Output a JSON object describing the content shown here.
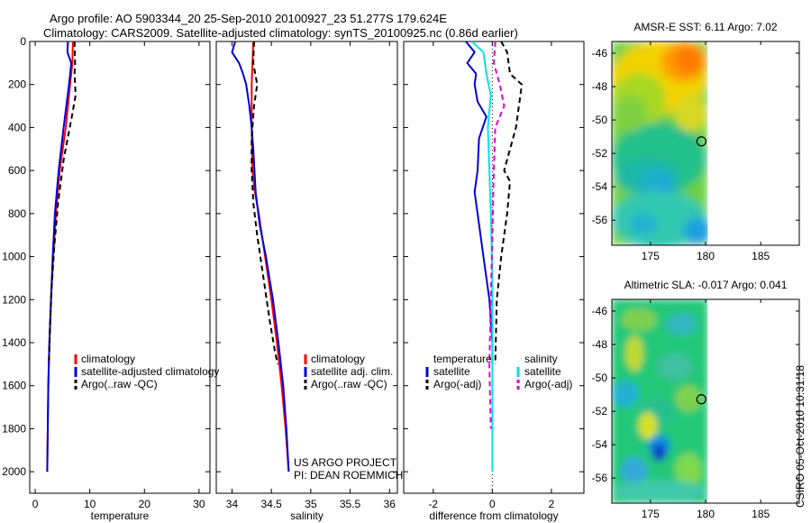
{
  "header": {
    "line1": "Argo profile: AO 5903344_20 25-Sep-2010 20100927_23 51.277S 179.624E",
    "line2": "Climatology: CARS2009. Satellite-adjusted climatology: synTS_20100925.nc (0.86d earlier)"
  },
  "credit": {
    "project": "US ARGO PROJECT",
    "pi": "PI: DEAN ROEMMICH",
    "stamp": "CSIRO 05-Oct-2010 10:31:18"
  },
  "colors": {
    "climatology": "#ff0000",
    "satellite": "#0000dd",
    "argo": "#000000",
    "sal_satellite": "#00e5e5",
    "sal_argo": "#e000e0"
  },
  "chart_data": [
    {
      "type": "line",
      "xlabel": "temperature",
      "ylabel": "",
      "xlim": [
        -1,
        32
      ],
      "ylim": [
        2100,
        0
      ],
      "xticks": [
        0,
        10,
        20,
        30
      ],
      "yticks": [
        0,
        200,
        400,
        600,
        800,
        1000,
        1200,
        1400,
        1600,
        1800,
        2000
      ],
      "legend": [
        "climatology",
        "satellite-adjusted climatology",
        "Argo(..raw -QC)"
      ],
      "series": [
        {
          "name": "climatology",
          "color": "#ff0000",
          "dash": "",
          "x": [
            6.9,
            6.8,
            6.4,
            5.6,
            4.5,
            3.8,
            3.3,
            2.9,
            2.6,
            2.4,
            2.3,
            2.2
          ],
          "y": [
            0,
            100,
            200,
            400,
            600,
            800,
            1000,
            1200,
            1400,
            1600,
            1800,
            2000
          ]
        },
        {
          "name": "satellite-adjusted climatology",
          "color": "#0000dd",
          "dash": "",
          "x": [
            6.0,
            5.9,
            6.6,
            6.2,
            5.2,
            4.3,
            3.6,
            3.2,
            2.9,
            2.6,
            2.4,
            2.3,
            2.2
          ],
          "y": [
            0,
            50,
            100,
            200,
            400,
            600,
            800,
            1000,
            1200,
            1400,
            1600,
            1800,
            2000
          ]
        },
        {
          "name": "Argo(..raw -QC)",
          "color": "#000000",
          "dash": "6,4",
          "x": [
            7.2,
            7.3,
            7.2,
            7.4,
            6.7,
            5.2,
            4.2,
            3.5,
            3.0,
            2.7,
            2.5
          ],
          "y": [
            0,
            100,
            150,
            250,
            350,
            550,
            750,
            950,
            1150,
            1350,
            1500
          ]
        }
      ]
    },
    {
      "type": "line",
      "xlabel": "salinity",
      "ylabel": "",
      "xlim": [
        33.8,
        36.1
      ],
      "ylim": [
        2100,
        0
      ],
      "xticks": [
        34,
        34.5,
        35,
        35.5,
        36
      ],
      "legend": [
        "climatology",
        "satellite adj. clim.",
        "Argo(..raw -QC)"
      ],
      "series": [
        {
          "name": "climatology",
          "color": "#ff0000",
          "dash": "",
          "x": [
            34.27,
            34.26,
            34.25,
            34.25,
            34.26,
            34.29,
            34.34,
            34.42,
            34.5,
            34.57,
            34.63,
            34.68,
            34.72
          ],
          "y": [
            0,
            100,
            200,
            400,
            600,
            700,
            800,
            1000,
            1200,
            1400,
            1600,
            1800,
            2000
          ]
        },
        {
          "name": "satellite adj. clim.",
          "color": "#0000dd",
          "dash": "",
          "x": [
            34.04,
            34.0,
            34.09,
            34.14,
            34.18,
            34.22,
            34.25,
            34.27,
            34.3,
            34.35,
            34.43,
            34.52,
            34.59,
            34.65,
            34.69,
            34.72
          ],
          "y": [
            0,
            50,
            100,
            150,
            200,
            300,
            400,
            500,
            700,
            850,
            1000,
            1200,
            1400,
            1600,
            1800,
            2000
          ]
        },
        {
          "name": "Argo(..raw -QC)",
          "color": "#000000",
          "dash": "6,4",
          "x": [
            34.28,
            34.27,
            34.32,
            34.28,
            34.25,
            34.25,
            34.27,
            34.32,
            34.4,
            34.48,
            34.55,
            34.58
          ],
          "y": [
            0,
            100,
            200,
            300,
            450,
            600,
            750,
            900,
            1100,
            1300,
            1450,
            1500
          ]
        }
      ]
    },
    {
      "type": "line",
      "xlabel": "difference from climatology",
      "ylabel": "",
      "xlim": [
        -3,
        3.1
      ],
      "ylim": [
        2100,
        0
      ],
      "xticks": [
        -2,
        0,
        2
      ],
      "legend": [
        "temperature",
        "satellite",
        "Argo(-adj)",
        "salinity",
        "satellite",
        "Argo(-adj)"
      ],
      "series": [
        {
          "name": "satellite",
          "group": "temperature",
          "color": "#0000dd",
          "dash": "",
          "x": [
            -0.9,
            -0.6,
            -0.85,
            -0.55,
            -0.6,
            -0.5,
            -0.2,
            -0.45,
            -0.5,
            -0.6,
            -0.5,
            -0.3,
            -0.1,
            0.0,
            0.0
          ],
          "y": [
            0,
            50,
            100,
            150,
            200,
            280,
            350,
            450,
            600,
            700,
            800,
            1000,
            1200,
            1400,
            1500
          ]
        },
        {
          "name": "Argo(-adj)",
          "group": "temperature",
          "color": "#000000",
          "dash": "6,4",
          "x": [
            0.3,
            0.5,
            0.6,
            1.0,
            0.8,
            0.4,
            0.6,
            0.5,
            0.3,
            0.15,
            0.1
          ],
          "y": [
            0,
            50,
            150,
            200,
            400,
            600,
            650,
            800,
            1000,
            1200,
            1500
          ]
        },
        {
          "name": "satellite",
          "group": "salinity",
          "color": "#00e5e5",
          "dash": "",
          "x": [
            -0.7,
            -0.3,
            -0.2,
            -0.05,
            -0.15,
            -0.1,
            -0.05,
            0.0,
            0.0,
            0.0
          ],
          "y": [
            0,
            50,
            150,
            250,
            400,
            600,
            800,
            1100,
            1500,
            2000
          ]
        },
        {
          "name": "Argo(-adj)",
          "group": "salinity",
          "color": "#e000e0",
          "dash": "6,4",
          "x": [
            0.1,
            0.05,
            0.25,
            0.4,
            0.1,
            0.05,
            0.0,
            -0.05,
            -0.1,
            -0.05
          ],
          "y": [
            0,
            100,
            200,
            300,
            400,
            600,
            900,
            1200,
            1500,
            1800
          ]
        }
      ]
    },
    {
      "type": "heatmap",
      "title": "AMSR-E SST: 6.11  Argo: 7.02",
      "xlim": [
        171.5,
        188.5
      ],
      "ylim": [
        -57.5,
        -45.3
      ],
      "xticks": [
        175,
        180,
        185
      ],
      "yticks": [
        -46,
        -48,
        -50,
        -52,
        -54,
        -56
      ],
      "data_extent_lon": [
        171.5,
        180.2
      ],
      "marker": {
        "lon": 179.62,
        "lat": -51.28
      }
    },
    {
      "type": "heatmap",
      "title": "Altimetric SLA: -0.017  Argo: 0.041",
      "xlim": [
        171.5,
        188.5
      ],
      "ylim": [
        -57.5,
        -45.3
      ],
      "xticks": [
        175,
        180,
        185
      ],
      "yticks": [
        -46,
        -48,
        -50,
        -52,
        -54,
        -56
      ],
      "data_extent_lon": [
        171.5,
        180.2
      ],
      "marker": {
        "lon": 179.62,
        "lat": -51.28
      }
    }
  ]
}
